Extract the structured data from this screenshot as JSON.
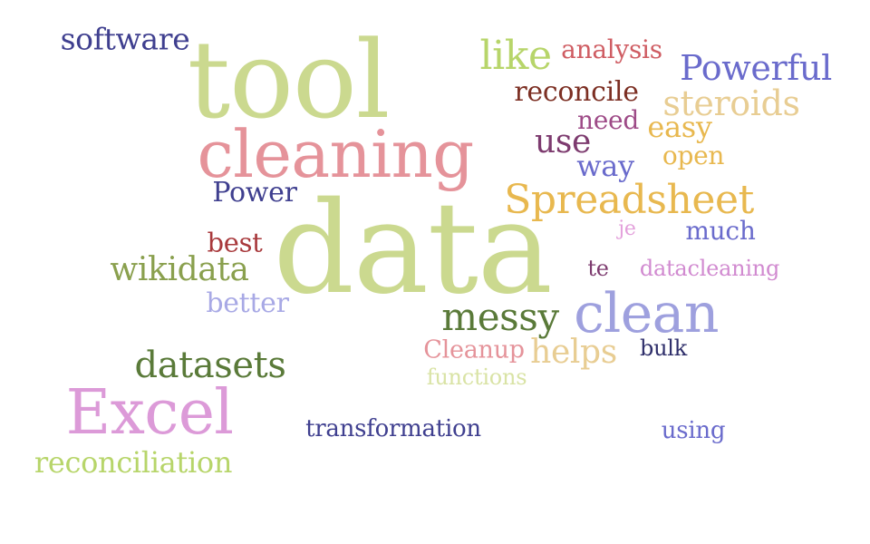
{
  "words": [
    {
      "text": "data",
      "color": "#cbd98f"
    },
    {
      "text": "tool",
      "color": "#cbd98f"
    },
    {
      "text": "cleaning",
      "color": "#e5939a"
    },
    {
      "text": "Excel",
      "color": "#dc9ad8"
    },
    {
      "text": "clean",
      "color": "#9ea0de"
    },
    {
      "text": "Spreadsheet",
      "color": "#e8b84f"
    },
    {
      "text": "messy",
      "color": "#5a7a39"
    },
    {
      "text": "datasets",
      "color": "#5a7a39"
    },
    {
      "text": "wikidata",
      "color": "#8aa04e"
    },
    {
      "text": "Powerful",
      "color": "#6a6bcc"
    },
    {
      "text": "like",
      "color": "#b7d56a"
    },
    {
      "text": "software",
      "color": "#3f3f8f"
    },
    {
      "text": "steroids",
      "color": "#e8cd93"
    },
    {
      "text": "reconcile",
      "color": "#7c2f23"
    },
    {
      "text": "analysis",
      "color": "#cf5d63"
    },
    {
      "text": "use",
      "color": "#7d3b6f"
    },
    {
      "text": "need",
      "color": "#9e4b87"
    },
    {
      "text": "easy",
      "color": "#e8b84f"
    },
    {
      "text": "way",
      "color": "#6a6bcc"
    },
    {
      "text": "open",
      "color": "#e8b84f"
    },
    {
      "text": "Power",
      "color": "#3f3f8f"
    },
    {
      "text": "best",
      "color": "#a8393c"
    },
    {
      "text": "better",
      "color": "#a8a9e5"
    },
    {
      "text": "much",
      "color": "#6a6bcc"
    },
    {
      "text": "je",
      "color": "#e3a0db"
    },
    {
      "text": "te",
      "color": "#7d3b6f"
    },
    {
      "text": "datacleaning",
      "color": "#d18ad0"
    },
    {
      "text": "Cleanup",
      "color": "#e5939a"
    },
    {
      "text": "helps",
      "color": "#e8cd93"
    },
    {
      "text": "bulk",
      "color": "#2e2e6a"
    },
    {
      "text": "functions",
      "color": "#d9e3a5"
    },
    {
      "text": "transformation",
      "color": "#3f3f8f"
    },
    {
      "text": "using",
      "color": "#6a6bcc"
    },
    {
      "text": "reconciliation",
      "color": "#b7d56a"
    }
  ]
}
